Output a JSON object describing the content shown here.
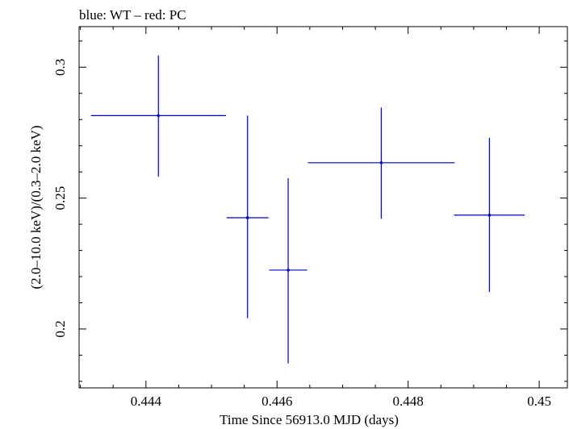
{
  "chart_data": {
    "type": "scatter",
    "title": "blue: WT – red: PC",
    "xlabel": "Time Since 56913.0 MJD (days)",
    "ylabel": "(2.0–10.0 keV)/(0.3–2.0 keV)",
    "xlim": [
      0.44298,
      0.45043
    ],
    "ylim": [
      0.1775,
      0.3155
    ],
    "x_major_ticks": [
      0.444,
      0.446,
      0.448,
      0.45
    ],
    "x_tick_labels": [
      "0.444",
      "0.446",
      "0.448",
      "0.45"
    ],
    "x_minor_step": 0.0005,
    "y_major_ticks": [
      0.2,
      0.25,
      0.3
    ],
    "y_tick_labels": [
      "0.2",
      "0.25",
      "0.3"
    ],
    "y_minor_step": 0.01,
    "series": [
      {
        "name": "WT",
        "color": "#0000cc",
        "points": [
          {
            "x": 0.44419,
            "y": 0.2815,
            "xerr": 0.00103,
            "yerr_low": 0.0233,
            "yerr_high": 0.023
          },
          {
            "x": 0.44555,
            "y": 0.2425,
            "xerr": 0.00032,
            "yerr_low": 0.0384,
            "yerr_high": 0.039
          },
          {
            "x": 0.44617,
            "y": 0.2225,
            "xerr": 0.00029,
            "yerr_low": 0.0357,
            "yerr_high": 0.0351
          },
          {
            "x": 0.44759,
            "y": 0.2635,
            "xerr": 0.00112,
            "yerr_low": 0.0214,
            "yerr_high": 0.0211
          },
          {
            "x": 0.44924,
            "y": 0.2435,
            "xerr": 0.00054,
            "yerr_low": 0.0294,
            "yerr_high": 0.0295
          }
        ]
      }
    ]
  }
}
